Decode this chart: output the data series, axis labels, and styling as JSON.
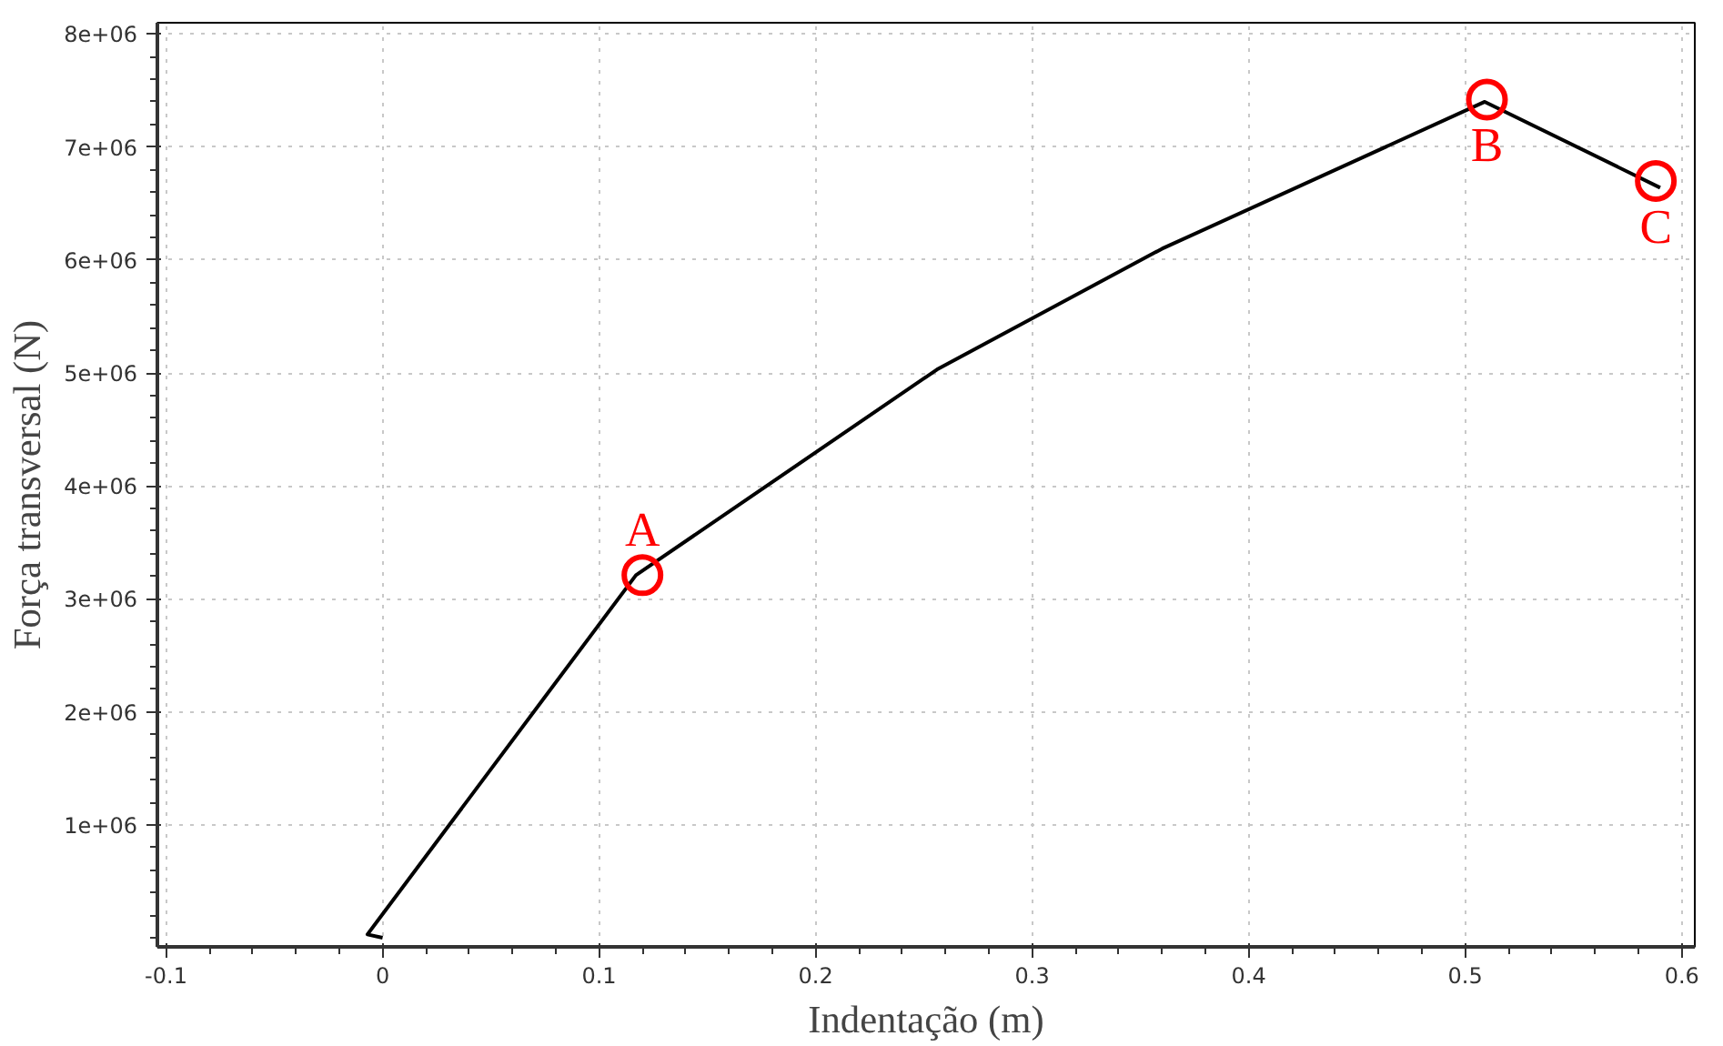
{
  "chart_data": {
    "type": "line",
    "xlabel": "Indentação (m)",
    "ylabel": "Força transversal (N)",
    "x": [
      0,
      -0.007,
      0.117,
      0.256,
      0.36,
      0.509,
      0.59
    ],
    "series": [
      {
        "color": "#000000",
        "values": [
          0,
          30000,
          3210000,
          5030000,
          6100000,
          7400000,
          6640000
        ]
      }
    ],
    "xlim": [
      -0.104,
      0.606
    ],
    "ylim": [
      -80000,
      8100000
    ],
    "xticks": [
      -0.1,
      0,
      0.1,
      0.2,
      0.3,
      0.4,
      0.5,
      0.6
    ],
    "yticks": [
      {
        "value": 1000000,
        "label": "1e+06"
      },
      {
        "value": 2000000,
        "label": "2e+06"
      },
      {
        "value": 3000000,
        "label": "3e+06"
      },
      {
        "value": 4000000,
        "label": "4e+06"
      },
      {
        "value": 5000000,
        "label": "5e+06"
      },
      {
        "value": 6000000,
        "label": "6e+06"
      },
      {
        "value": 7000000,
        "label": "7e+06"
      },
      {
        "value": 8000000,
        "label": "8e+06"
      }
    ],
    "grid": true,
    "marker": "none",
    "line_style": "solid",
    "annotations": [
      {
        "text": "A",
        "x": 0.12,
        "y": 3210000
      },
      {
        "text": "B",
        "x": 0.51,
        "y": 7420000
      },
      {
        "text": "C",
        "x": 0.588,
        "y": 6700000
      }
    ]
  }
}
